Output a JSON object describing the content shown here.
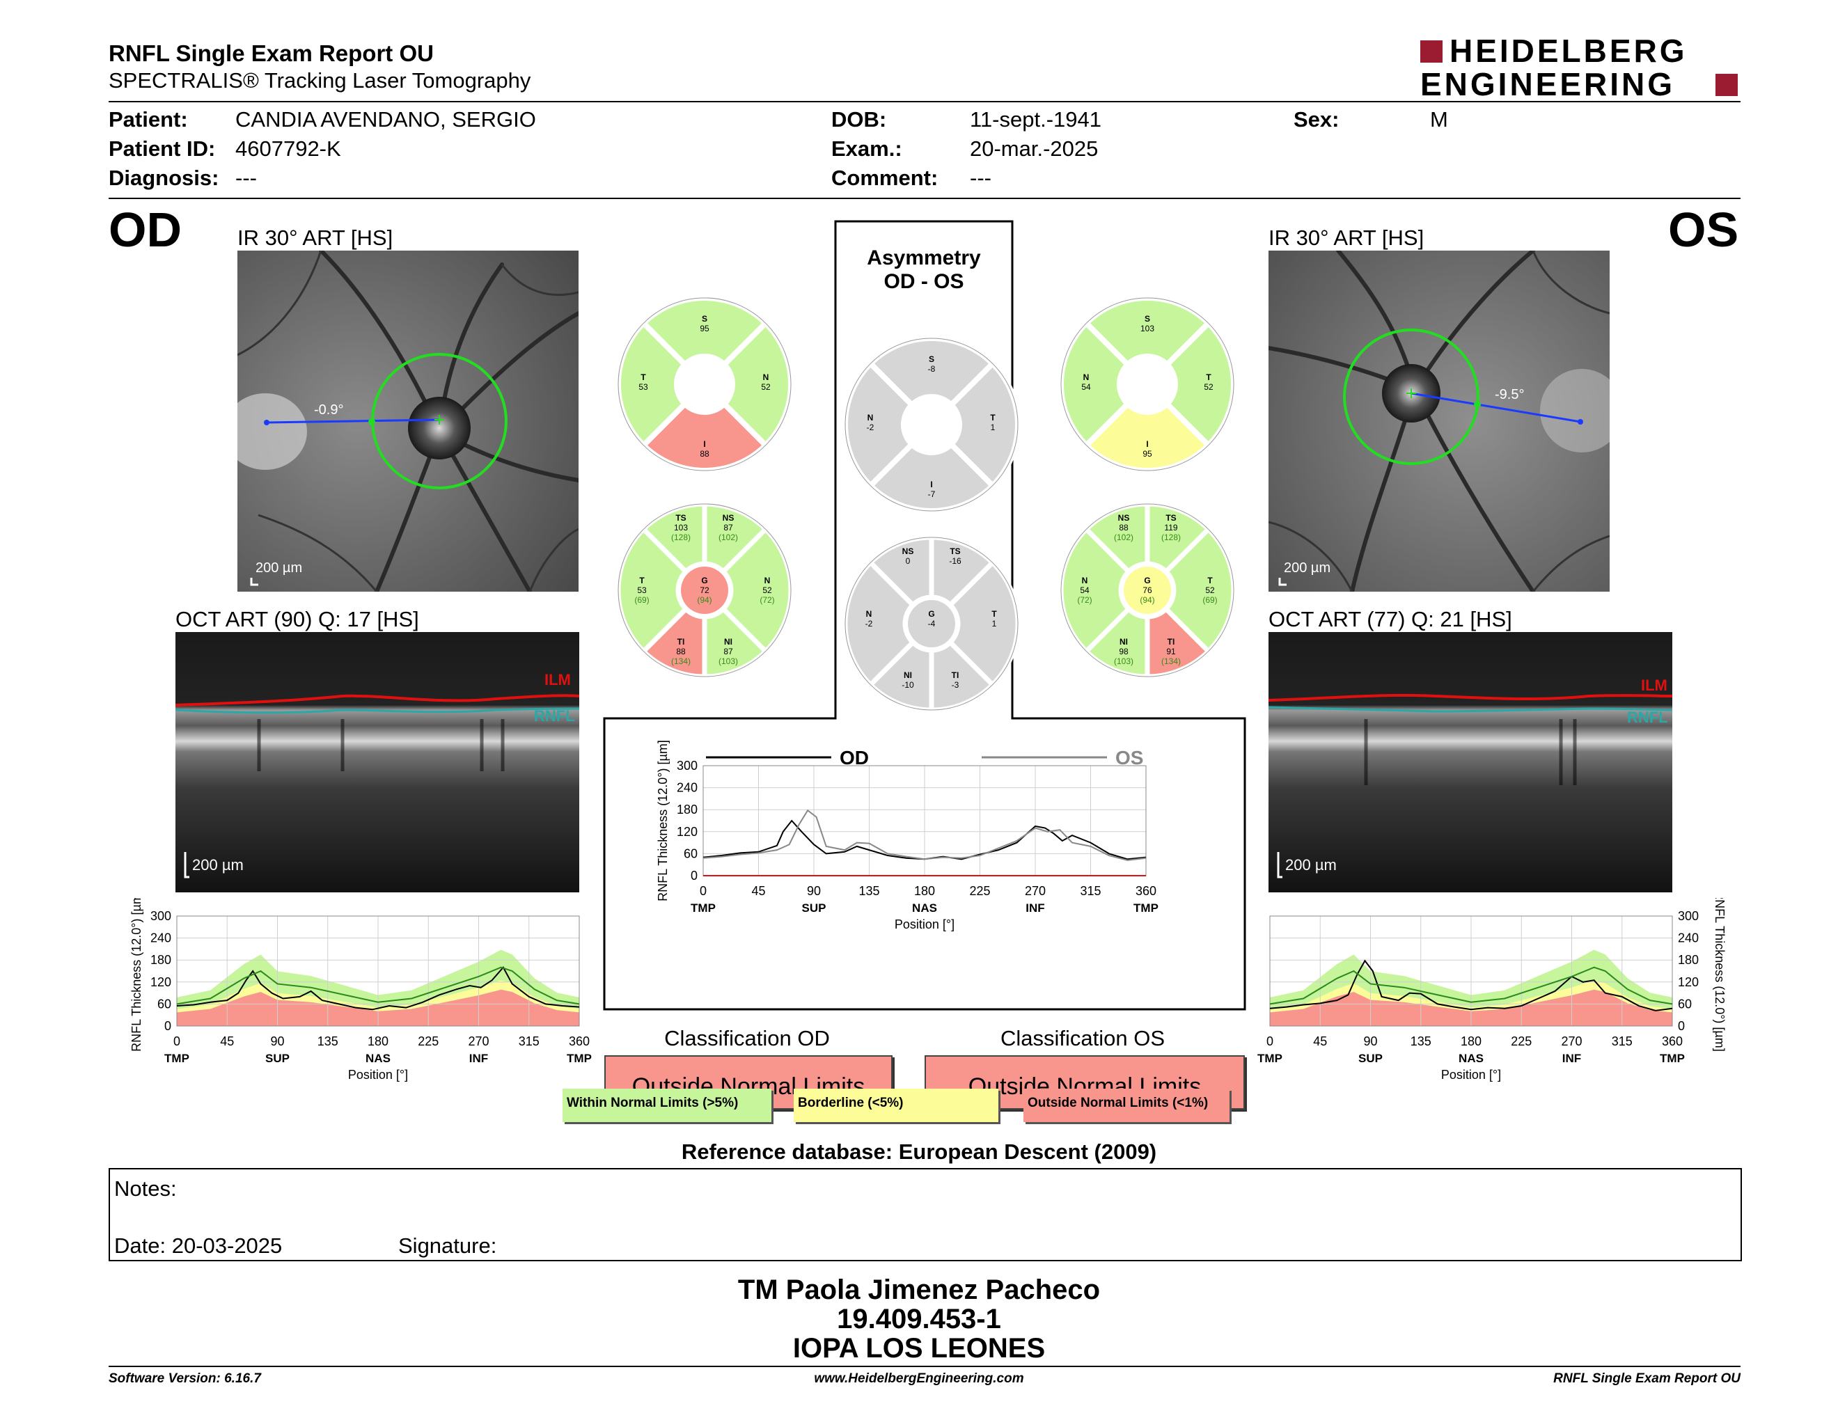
{
  "header": {
    "title": "RNFL Single Exam Report OU",
    "subtitle": "SPECTRALIS® Tracking Laser Tomography",
    "logo_line1": "HEIDELBERG",
    "logo_line2": "ENGINEERING"
  },
  "patient": {
    "patient_label": "Patient:",
    "patient_value": "CANDIA AVENDANO, SERGIO",
    "id_label": "Patient ID:",
    "id_value": "4607792-K",
    "diagnosis_label": "Diagnosis:",
    "diagnosis_value": "---",
    "dob_label": "DOB:",
    "dob_value": "11-sept.-1941",
    "exam_label": "Exam.:",
    "exam_value": "20-mar.-2025",
    "comment_label": "Comment:",
    "comment_value": "---",
    "sex_label": "Sex:",
    "sex_value": "M"
  },
  "od": {
    "eye": "OD",
    "ir_caption": "IR 30° ART [HS]",
    "angle": "-0.9°",
    "scale": "200 µm",
    "oct_caption": "OCT ART (90) Q: 17 [HS]",
    "oct_scale": "200 µm",
    "ilm": "ILM",
    "rnfl": "RNFL",
    "quad": {
      "S": 95,
      "N": 52,
      "I": 88,
      "T": 53
    },
    "sector": {
      "TS": 103,
      "TS_n": "(128)",
      "NS": 87,
      "NS_n": "(102)",
      "T": 53,
      "T_n": "(69)",
      "G": 72,
      "G_n": "(94)",
      "N": 52,
      "N_n": "(72)",
      "TI": 88,
      "TI_n": "(134)",
      "NI": 87,
      "NI_n": "(103)"
    },
    "classification_title": "Classification OD",
    "classification": "Outside Normal Limits"
  },
  "os": {
    "eye": "OS",
    "ir_caption": "IR 30° ART [HS]",
    "angle": "-9.5°",
    "scale": "200 µm",
    "oct_caption": "OCT ART (77) Q: 21 [HS]",
    "oct_scale": "200 µm",
    "ilm": "ILM",
    "rnfl": "RNFL",
    "quad": {
      "S": 103,
      "T": 52,
      "I": 95,
      "N": 54
    },
    "sector": {
      "NS": 88,
      "NS_n": "(102)",
      "TS": 119,
      "TS_n": "(128)",
      "N": 54,
      "N_n": "(72)",
      "G": 76,
      "G_n": "(94)",
      "T": 52,
      "T_n": "(69)",
      "NI": 98,
      "NI_n": "(103)",
      "TI": 91,
      "TI_n": "(134)"
    },
    "classification_title": "Classification OS",
    "classification": "Outside Normal Limits"
  },
  "asym": {
    "title1": "Asymmetry",
    "title2": "OD - OS",
    "quad": {
      "S": -8,
      "T": 1,
      "I": -7,
      "N": -2
    },
    "sector": {
      "NS": 0,
      "TS": -16,
      "N": -2,
      "G": -4,
      "T": 1,
      "NI": -10,
      "TI": -3
    }
  },
  "labels": {
    "S": "S",
    "N": "N",
    "I": "I",
    "T": "T",
    "TS": "TS",
    "NS": "NS",
    "G": "G",
    "TI": "TI",
    "NI": "NI"
  },
  "chart_data": [
    {
      "type": "line",
      "id": "compare",
      "ylabel": "RNFL Thickness (12.0°) [µm]",
      "xlabel": "Position [°]",
      "ylim": [
        0,
        300
      ],
      "xlim": [
        0,
        360
      ],
      "yticks": [
        "300",
        "240",
        "180",
        "120",
        "60",
        "0"
      ],
      "xticks": [
        "0",
        "45",
        "90",
        "135",
        "180",
        "225",
        "270",
        "315",
        "360"
      ],
      "sectors": [
        "TMP",
        "SUP",
        "NAS",
        "INF",
        "TMP"
      ],
      "series": [
        {
          "name": "OD",
          "x": [
            0,
            15,
            30,
            45,
            60,
            65,
            72,
            80,
            90,
            100,
            115,
            125,
            135,
            150,
            165,
            180,
            195,
            210,
            225,
            240,
            255,
            270,
            278,
            285,
            292,
            300,
            315,
            330,
            345,
            360
          ],
          "values": [
            50,
            55,
            62,
            65,
            82,
            120,
            150,
            120,
            85,
            60,
            65,
            80,
            70,
            55,
            48,
            45,
            52,
            45,
            58,
            70,
            90,
            135,
            130,
            115,
            95,
            110,
            90,
            60,
            45,
            50
          ]
        },
        {
          "name": "OS",
          "x": [
            0,
            15,
            30,
            45,
            60,
            70,
            78,
            85,
            92,
            100,
            115,
            125,
            135,
            150,
            165,
            180,
            195,
            210,
            225,
            240,
            255,
            270,
            280,
            290,
            300,
            315,
            330,
            345,
            360
          ],
          "values": [
            48,
            52,
            58,
            62,
            70,
            85,
            140,
            178,
            160,
            80,
            70,
            90,
            88,
            60,
            52,
            45,
            50,
            48,
            55,
            75,
            95,
            130,
            120,
            125,
            90,
            80,
            55,
            42,
            48
          ]
        }
      ]
    },
    {
      "type": "line",
      "id": "od_profile",
      "ylabel": "RNFL Thickness (12.0°) [µm]",
      "xlabel": "Position [°]",
      "ylim": [
        0,
        300
      ],
      "xlim": [
        0,
        360
      ],
      "yticks": [
        "300",
        "240",
        "180",
        "120",
        "60",
        "0"
      ],
      "xticks": [
        "0",
        "45",
        "90",
        "135",
        "180",
        "225",
        "270",
        "315",
        "360"
      ],
      "sectors": [
        "TMP",
        "SUP",
        "NAS",
        "INF",
        "TMP"
      ],
      "series": [
        {
          "name": "Patient",
          "x": [
            0,
            15,
            30,
            45,
            55,
            62,
            68,
            75,
            85,
            95,
            110,
            120,
            130,
            145,
            160,
            175,
            190,
            205,
            220,
            235,
            250,
            262,
            272,
            282,
            292,
            300,
            315,
            330,
            345,
            360
          ],
          "values": [
            55,
            58,
            65,
            70,
            90,
            125,
            150,
            115,
            90,
            75,
            80,
            95,
            70,
            60,
            50,
            45,
            55,
            50,
            65,
            85,
            100,
            110,
            105,
            125,
            160,
            115,
            80,
            60,
            55,
            52
          ]
        },
        {
          "name": "Normal",
          "x": [
            0,
            30,
            60,
            75,
            90,
            120,
            150,
            180,
            210,
            240,
            270,
            290,
            300,
            320,
            340,
            360
          ],
          "values": [
            60,
            75,
            130,
            150,
            115,
            105,
            85,
            65,
            75,
            105,
            135,
            160,
            150,
            100,
            70,
            60
          ]
        }
      ]
    },
    {
      "type": "line",
      "id": "os_profile",
      "ylabel": "RNFL Thickness (12.0°) [µm]",
      "xlabel": "Position [°]",
      "ylim": [
        0,
        300
      ],
      "xlim": [
        0,
        360
      ],
      "yticks": [
        "300",
        "240",
        "180",
        "120",
        "60",
        "0"
      ],
      "xticks": [
        "0",
        "45",
        "90",
        "135",
        "180",
        "225",
        "270",
        "315",
        "360"
      ],
      "sectors": [
        "TMP",
        "SUP",
        "NAS",
        "INF",
        "TMP"
      ],
      "series": [
        {
          "name": "Patient",
          "x": [
            0,
            15,
            30,
            45,
            60,
            70,
            78,
            85,
            92,
            100,
            115,
            125,
            135,
            150,
            165,
            180,
            195,
            210,
            225,
            240,
            255,
            270,
            280,
            290,
            300,
            315,
            330,
            345,
            360
          ],
          "values": [
            48,
            52,
            58,
            62,
            70,
            85,
            140,
            178,
            150,
            80,
            70,
            90,
            88,
            60,
            52,
            45,
            50,
            48,
            55,
            75,
            95,
            135,
            120,
            125,
            90,
            80,
            55,
            42,
            48
          ]
        },
        {
          "name": "Normal",
          "x": [
            0,
            30,
            60,
            75,
            90,
            120,
            150,
            180,
            210,
            240,
            270,
            290,
            300,
            320,
            340,
            360
          ],
          "values": [
            60,
            75,
            130,
            150,
            115,
            105,
            85,
            65,
            75,
            105,
            135,
            160,
            150,
            100,
            70,
            60
          ]
        }
      ]
    }
  ],
  "legend": {
    "within": "Within Normal Limits (>5%)",
    "borderline": "Borderline (<5%)",
    "outside": "Outside Normal Limits (<1%)"
  },
  "colors": {
    "green": "#c6f59c",
    "yellow": "#fcfc98",
    "red": "#f8958c",
    "gray": "#d6d6d6"
  },
  "reference": "Reference database: European Descent (2009)",
  "notes": {
    "label": "Notes:",
    "date": "Date: 20-03-2025",
    "signature": "Signature:"
  },
  "signoff": {
    "name": "TM Paola Jimenez Pacheco",
    "id": "19.409.453-1",
    "clinic": "IOPA LOS LEONES"
  },
  "footer": {
    "version": "Software Version: 6.16.7",
    "url": "www.HeidelbergEngineering.com",
    "report": "RNFL Single Exam Report OU"
  }
}
